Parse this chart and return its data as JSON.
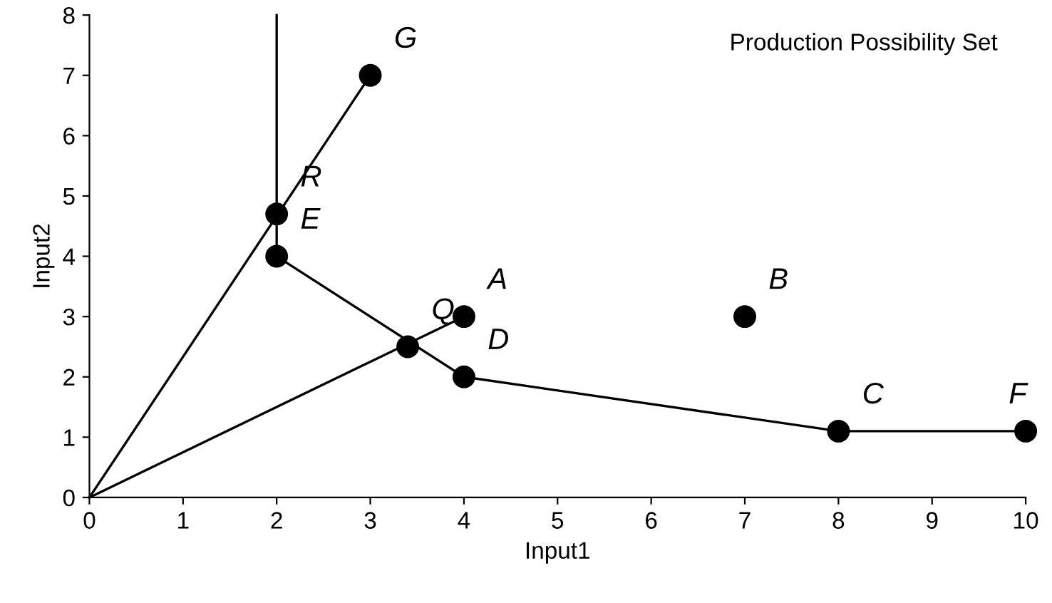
{
  "chart_data": {
    "type": "line",
    "xlabel": "Input1",
    "ylabel": "Input2",
    "xlim": [
      0,
      10
    ],
    "ylim": [
      0,
      8
    ],
    "xticks": [
      0,
      1,
      2,
      3,
      4,
      5,
      6,
      7,
      8,
      9,
      10
    ],
    "yticks": [
      0,
      1,
      2,
      3,
      4,
      5,
      6,
      7,
      8
    ],
    "grid": false,
    "legend": false,
    "line_style": "solid",
    "series": [
      {
        "color": "#000000",
        "marker": "none",
        "x": [
          2,
          2,
          4,
          8,
          10
        ],
        "values": [
          8,
          4,
          2,
          1.1,
          1.1
        ]
      },
      {
        "color": "#000000",
        "marker": "none",
        "x": [
          0,
          3
        ],
        "values": [
          0,
          7
        ]
      },
      {
        "color": "#000000",
        "marker": "none",
        "x": [
          0,
          4
        ],
        "values": [
          0,
          3
        ]
      },
      {
        "type": "scatter",
        "color": "#000000",
        "marker": "circle",
        "x": [
          3,
          2,
          2,
          4,
          3.4,
          4,
          7,
          8,
          10
        ],
        "values": [
          7,
          4.7,
          4,
          3,
          2.5,
          2,
          3,
          1.1,
          1.1
        ]
      }
    ],
    "annotations": [
      {
        "text": "G",
        "x": 3,
        "y": 7
      },
      {
        "text": "R",
        "x": 2,
        "y": 4.7
      },
      {
        "text": "E",
        "x": 2,
        "y": 4
      },
      {
        "text": "A",
        "x": 4,
        "y": 3
      },
      {
        "text": "Q",
        "x": 3.4,
        "y": 2.5
      },
      {
        "text": "D",
        "x": 4,
        "y": 2
      },
      {
        "text": "B",
        "x": 7,
        "y": 3
      },
      {
        "text": "C",
        "x": 8,
        "y": 1.1
      },
      {
        "text": "F",
        "x": 10,
        "y": 1.1
      },
      "Production Possibility Set"
    ]
  }
}
